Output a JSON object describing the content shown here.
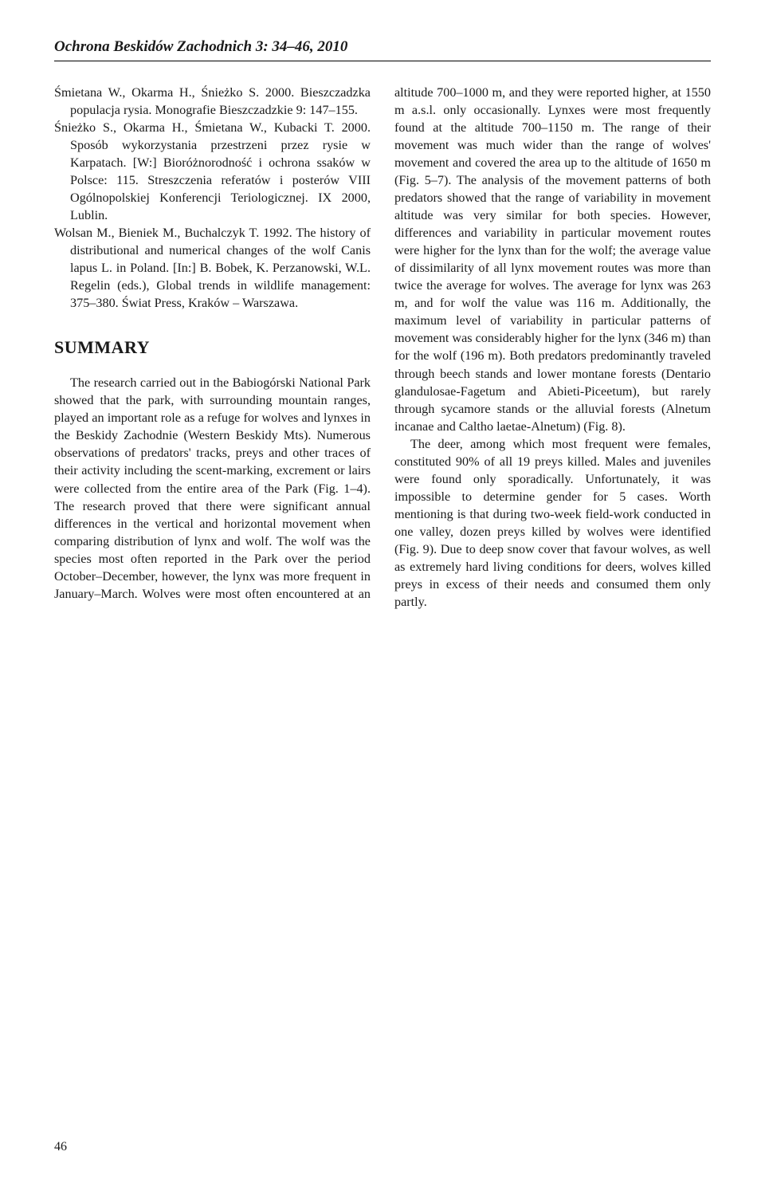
{
  "running_head": "Ochrona Beskidów Zachodnich 3: 34–46, 2010",
  "references": [
    "Śmietana W., Okarma H., Śnieżko S. 2000. Bieszczadzka populacja rysia. Monografie Bieszczadzkie 9: 147–155.",
    "Śnieżko S., Okarma H., Śmietana W., Kubacki T. 2000. Sposób wykorzystania przestrzeni przez rysie w Karpatach. [W:] Bioróżnorodność i ochrona ssaków w Polsce: 115. Streszczenia referatów i posterów VIII Ogólnopolskiej Konferencji Teriologicznej. IX 2000, Lublin.",
    "Wolsan M., Bieniek M., Buchalczyk T. 1992. The history of distributional and numerical changes of the wolf Canis lapus L. in Poland. [In:] B. Bobek, K. Perzanowski, W.L. Regelin (eds.), Global trends in wildlife management: 375–380. Świat Press, Kraków – Warszawa."
  ],
  "section_heading": "SUMMARY",
  "summary_paragraphs": [
    "The research carried out in the Babiogórski National Park showed that the park, with surrounding mountain ranges, played an important role as a refuge for wolves and lynxes in the Beskidy Zachodnie (Western Beskidy Mts). Numerous observations of predators' tracks, preys and other traces of their activity including the scent-marking, excrement or lairs were collected from the entire area of the Park (Fig. 1–4). The research proved that there were significant annual differences in the vertical and horizontal movement when comparing distribution of lynx and wolf. The wolf was the species most often reported in the Park over the period October–December, however, the lynx was more frequent in January–March. Wolves were most often encountered at an altitude 700–1000 m, and they were reported higher, at 1550 m a.s.l. only occasionally. Lynxes were most frequently found at the altitude 700–1150 m. The range of their movement was much wider than the range of wolves' movement and covered the area up to the altitude of 1650 m (Fig. 5–7). The analysis of the movement patterns of both predators showed that the range of variability in movement altitude was very similar for both species. However, differences and variability in particular movement routes were higher for the lynx than for the wolf; the average value of dissimilarity of all lynx movement routes was more than twice the average for wolves. The average for lynx was 263 m, and for wolf the value was 116 m. Additionally, the maximum level of variability in particular patterns of movement was considerably higher for the lynx (346 m) than for the wolf (196 m). Both predators predominantly traveled through beech stands and lower montane forests (Dentario glandulosae-Fagetum and Abieti-Piceetum), but rarely through sycamore stands or the alluvial forests (Alnetum incanae and Caltho laetae-Alnetum) (Fig. 8).",
    "The deer, among which most frequent were females, constituted 90% of all 19 preys killed. Males and juveniles were found only sporadically. Unfortunately, it was impossible to determine gender for 5 cases. Worth mentioning is that during two-week field-work conducted in one valley, dozen preys killed by wolves were identified (Fig. 9). Due to deep snow cover that favour wolves, as well as extremely hard living conditions for deers, wolves killed preys in excess of their needs and consumed them only partly."
  ],
  "page_number": "46"
}
